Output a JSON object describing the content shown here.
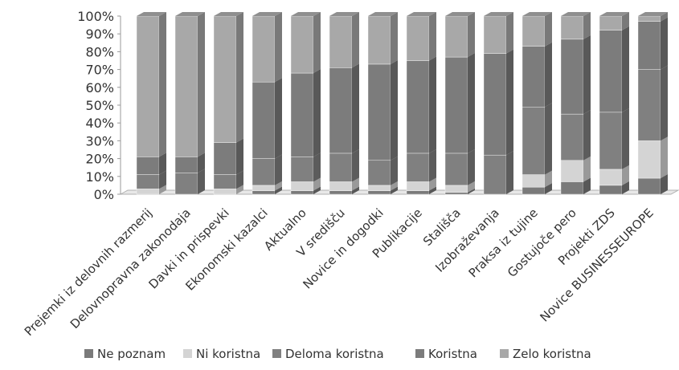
{
  "chart_data": {
    "type": "bar",
    "stacked": true,
    "percent": true,
    "three_d": true,
    "title": "",
    "xlabel": "",
    "ylabel": "",
    "ylim": [
      0,
      100
    ],
    "yticks": [
      "0%",
      "10%",
      "20%",
      "30%",
      "40%",
      "50%",
      "60%",
      "70%",
      "80%",
      "90%",
      "100%"
    ],
    "grid": false,
    "legend_position": "bottom",
    "categories": [
      "Prejemki iz delovnih razmerij",
      "Delovnopravna zakonodaja",
      "Davki in prispevki",
      "Ekonomski kazalci",
      "Aktualno",
      "V središču",
      "Novice in dogodki",
      "Publikacije",
      "Stališča",
      "Izobraževanja",
      "Praksa iz tujine",
      "Gostujoče pero",
      "Projekti ZDS",
      "Novice BUSINESSEUROPE"
    ],
    "series": [
      {
        "name": "Ne poznam",
        "color": "#7a7a7a",
        "values": [
          0,
          0,
          0,
          2,
          2,
          2,
          2,
          2,
          1,
          0,
          4,
          7,
          5,
          9
        ]
      },
      {
        "name": "Ni koristna",
        "color": "#d4d4d4",
        "values": [
          3,
          0,
          3,
          3,
          5,
          5,
          3,
          5,
          4,
          0,
          7,
          12,
          9,
          21
        ]
      },
      {
        "name": "Deloma koristna",
        "color": "#808080",
        "values": [
          8,
          12,
          8,
          15,
          14,
          16,
          14,
          16,
          18,
          22,
          38,
          26,
          32,
          40
        ]
      },
      {
        "name": "Koristna",
        "color": "#7c7c7c",
        "values": [
          10,
          9,
          18,
          43,
          47,
          48,
          54,
          52,
          54,
          57,
          34,
          42,
          46,
          27
        ]
      },
      {
        "name": "Zelo koristna",
        "color": "#a8a8a8",
        "values": [
          79,
          79,
          71,
          37,
          32,
          29,
          27,
          25,
          23,
          21,
          17,
          13,
          8,
          3
        ]
      }
    ]
  }
}
